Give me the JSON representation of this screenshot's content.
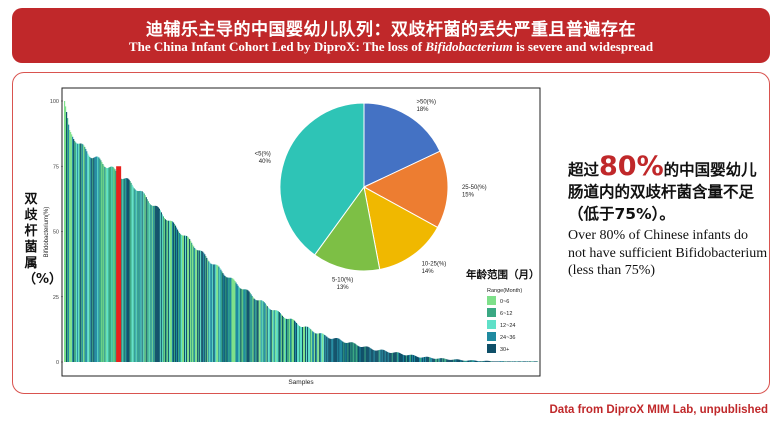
{
  "banner": {
    "title_zh": "迪辅乐主导的中国婴幼儿队列：双歧杆菌的丢失严重且普遍存在",
    "title_en_prefix": "The China Infant Cohort Led by DiproX: The loss of ",
    "title_en_italic": "Bifidobacterium",
    "title_en_suffix": " is severe and widespread"
  },
  "side": {
    "zh_pre": "超过",
    "zh_big": "80%",
    "zh_post": "的中国婴幼儿肠道内的双歧杆菌含量不足（低于75%）。",
    "en": "Over 80% of Chinese infants do not have sufficient Bifidobacterium (less than 75%)"
  },
  "source": "Data from DiproX MIM Lab, unpublished",
  "colors": {
    "accent_red": "#c0282a",
    "range_0_6": "#7ee08a",
    "range_6_12": "#3aa883",
    "range_12_24": "#5fe0c8",
    "range_24_36": "#1f8aa0",
    "range_30_plus": "#0e4f68",
    "pie_gt50": "#4472c4",
    "pie_25_50": "#ed7d31",
    "pie_10_25": "#f0b800",
    "pie_5_10": "#7dbf45",
    "pie_lt5": "#2ec4b6",
    "highlight": "#e8201c"
  },
  "chart_data": [
    {
      "type": "bar",
      "ylabel_zh": "双歧杆菌属（%）",
      "ylabel": "Bifidobacterium(%)",
      "xlabel": "Samples",
      "ylim": [
        0,
        100
      ],
      "yticks": [
        "0",
        "25",
        "50",
        "75",
        "100"
      ],
      "n_samples": 470,
      "profile": [
        [
          0,
          100
        ],
        [
          0.01,
          88
        ],
        [
          0.05,
          80
        ],
        [
          0.1,
          74
        ],
        [
          0.15,
          67
        ],
        [
          0.2,
          58
        ],
        [
          0.25,
          49
        ],
        [
          0.3,
          40
        ],
        [
          0.35,
          32
        ],
        [
          0.4,
          25
        ],
        [
          0.45,
          19
        ],
        [
          0.5,
          14
        ],
        [
          0.55,
          10
        ],
        [
          0.6,
          7.5
        ],
        [
          0.65,
          5
        ],
        [
          0.7,
          3.5
        ],
        [
          0.75,
          2
        ],
        [
          0.8,
          1.2
        ],
        [
          0.85,
          0.6
        ],
        [
          0.9,
          0.3
        ],
        [
          1.0,
          0
        ]
      ],
      "highlight_position": 0.11,
      "legend_title_zh": "年龄范围（月）",
      "legend_title": "Range(Month)",
      "legend": [
        "0~6",
        "6~12",
        "12~24",
        "24~36",
        "30+"
      ]
    },
    {
      "type": "pie",
      "slices": [
        {
          "label": ">50(%)",
          "value": 18,
          "pct": "18%"
        },
        {
          "label": "25-50(%)",
          "value": 15,
          "pct": "15%"
        },
        {
          "label": "10-25(%)",
          "value": 14,
          "pct": "14%"
        },
        {
          "label": "5-10(%)",
          "value": 13,
          "pct": "13%"
        },
        {
          "label": "<5(%)",
          "value": 40,
          "pct": "40%"
        }
      ]
    }
  ]
}
